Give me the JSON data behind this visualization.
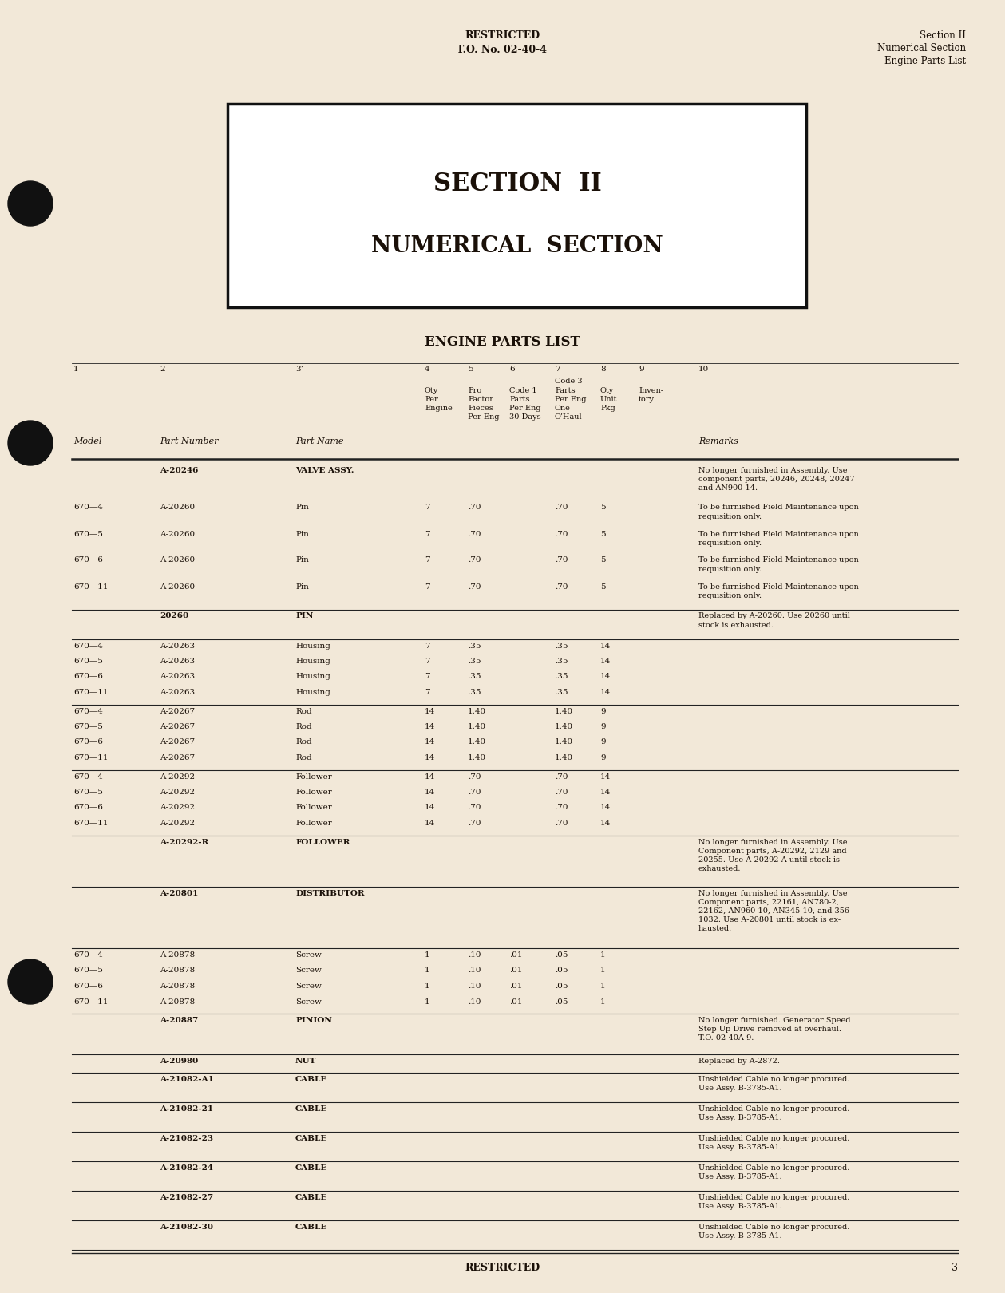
{
  "bg_color": "#f2e8d8",
  "header_center_line1": "RESTRICTED",
  "header_center_line2": "T.O. No. 02-40-4",
  "header_right_line1": "Section II",
  "header_right_line2": "Numerical Section",
  "header_right_line3": "Engine Parts List",
  "section_title_line1": "SECTION  II",
  "section_title_line2": "NUMERICAL  SECTION",
  "table_title": "ENGINE PARTS LIST",
  "footer_center": "RESTRICTED",
  "footer_page": "3",
  "rows": [
    {
      "model": "",
      "part": "A-20246",
      "name": "VALVE ASSY.",
      "c4": "",
      "c5": "",
      "c6": "",
      "c7": "",
      "c8": "",
      "c9": "",
      "remarks": "No longer furnished in Assembly. Use\ncomponent parts, 20246, 20248, 20247\nand AN900-14.",
      "bold": true,
      "sep_before": false,
      "sep_after": false
    },
    {
      "model": "670—4",
      "part": "A-20260",
      "name": "Pin",
      "c4": "7",
      "c5": ".70",
      "c6": "",
      "c7": ".70",
      "c8": "5",
      "c9": "",
      "remarks": "To be furnished Field Maintenance upon\nrequisition only.",
      "bold": false,
      "sep_before": true,
      "sep_after": false
    },
    {
      "model": "670—5",
      "part": "A-20260",
      "name": "Pin",
      "c4": "7",
      "c5": ".70",
      "c6": "",
      "c7": ".70",
      "c8": "5",
      "c9": "",
      "remarks": "To be furnished Field Maintenance upon\nrequisition only.",
      "bold": false,
      "sep_before": false,
      "sep_after": false
    },
    {
      "model": "670—6",
      "part": "A-20260",
      "name": "Pin",
      "c4": "7",
      "c5": ".70",
      "c6": "",
      "c7": ".70",
      "c8": "5",
      "c9": "",
      "remarks": "To be furnished Field Maintenance upon\nrequisition only.",
      "bold": false,
      "sep_before": false,
      "sep_after": false
    },
    {
      "model": "670—11",
      "part": "A-20260",
      "name": "Pin",
      "c4": "7",
      "c5": ".70",
      "c6": "",
      "c7": ".70",
      "c8": "5",
      "c9": "",
      "remarks": "To be furnished Field Maintenance upon\nrequisition only.",
      "bold": false,
      "sep_before": false,
      "sep_after": true
    },
    {
      "model": "",
      "part": "20260",
      "name": "PIN",
      "c4": "",
      "c5": "",
      "c6": "",
      "c7": "",
      "c8": "",
      "c9": "",
      "remarks": "Replaced by A-20260. Use 20260 until\nstock is exhausted.",
      "bold": true,
      "sep_before": false,
      "sep_after": true
    },
    {
      "model": "670—4",
      "part": "A-20263",
      "name": "Housing",
      "c4": "7",
      "c5": ".35",
      "c6": "",
      "c7": ".35",
      "c8": "14",
      "c9": "",
      "remarks": "",
      "bold": false,
      "sep_before": false,
      "sep_after": false
    },
    {
      "model": "670—5",
      "part": "A-20263",
      "name": "Housing",
      "c4": "7",
      "c5": ".35",
      "c6": "",
      "c7": ".35",
      "c8": "14",
      "c9": "",
      "remarks": "",
      "bold": false,
      "sep_before": false,
      "sep_after": false
    },
    {
      "model": "670—6",
      "part": "A-20263",
      "name": "Housing",
      "c4": "7",
      "c5": ".35",
      "c6": "",
      "c7": ".35",
      "c8": "14",
      "c9": "",
      "remarks": "",
      "bold": false,
      "sep_before": false,
      "sep_after": false
    },
    {
      "model": "670—11",
      "part": "A-20263",
      "name": "Housing",
      "c4": "7",
      "c5": ".35",
      "c6": "",
      "c7": ".35",
      "c8": "14",
      "c9": "",
      "remarks": "",
      "bold": false,
      "sep_before": false,
      "sep_after": true
    },
    {
      "model": "670—4",
      "part": "A-20267",
      "name": "Rod",
      "c4": "14",
      "c5": "1.40",
      "c6": "",
      "c7": "1.40",
      "c8": "9",
      "c9": "",
      "remarks": "",
      "bold": false,
      "sep_before": false,
      "sep_after": false
    },
    {
      "model": "670—5",
      "part": "A-20267",
      "name": "Rod",
      "c4": "14",
      "c5": "1.40",
      "c6": "",
      "c7": "1.40",
      "c8": "9",
      "c9": "",
      "remarks": "",
      "bold": false,
      "sep_before": false,
      "sep_after": false
    },
    {
      "model": "670—6",
      "part": "A-20267",
      "name": "Rod",
      "c4": "14",
      "c5": "1.40",
      "c6": "",
      "c7": "1.40",
      "c8": "9",
      "c9": "",
      "remarks": "",
      "bold": false,
      "sep_before": false,
      "sep_after": false
    },
    {
      "model": "670—11",
      "part": "A-20267",
      "name": "Rod",
      "c4": "14",
      "c5": "1.40",
      "c6": "",
      "c7": "1.40",
      "c8": "9",
      "c9": "",
      "remarks": "",
      "bold": false,
      "sep_before": false,
      "sep_after": true
    },
    {
      "model": "670—4",
      "part": "A-20292",
      "name": "Follower",
      "c4": "14",
      "c5": ".70",
      "c6": "",
      "c7": ".70",
      "c8": "14",
      "c9": "",
      "remarks": "",
      "bold": false,
      "sep_before": false,
      "sep_after": false
    },
    {
      "model": "670—5",
      "part": "A-20292",
      "name": "Follower",
      "c4": "14",
      "c5": ".70",
      "c6": "",
      "c7": ".70",
      "c8": "14",
      "c9": "",
      "remarks": "",
      "bold": false,
      "sep_before": false,
      "sep_after": false
    },
    {
      "model": "670—6",
      "part": "A-20292",
      "name": "Follower",
      "c4": "14",
      "c5": ".70",
      "c6": "",
      "c7": ".70",
      "c8": "14",
      "c9": "",
      "remarks": "",
      "bold": false,
      "sep_before": false,
      "sep_after": false
    },
    {
      "model": "670—11",
      "part": "A-20292",
      "name": "Follower",
      "c4": "14",
      "c5": ".70",
      "c6": "",
      "c7": ".70",
      "c8": "14",
      "c9": "",
      "remarks": "",
      "bold": false,
      "sep_before": false,
      "sep_after": true
    },
    {
      "model": "",
      "part": "A-20292-R",
      "name": "FOLLOWER",
      "c4": "",
      "c5": "",
      "c6": "",
      "c7": "",
      "c8": "",
      "c9": "",
      "remarks": "No longer furnished in Assembly. Use\nComponent parts, A-20292, 2129 and\n20255. Use A-20292-A until stock is\nexhausted.",
      "bold": true,
      "sep_before": false,
      "sep_after": true
    },
    {
      "model": "",
      "part": "A-20801",
      "name": "DISTRIBUTOR",
      "c4": "",
      "c5": "",
      "c6": "",
      "c7": "",
      "c8": "",
      "c9": "",
      "remarks": "No longer furnished in Assembly. Use\nComponent parts, 22161, AN780-2,\n22162, AN960-10, AN345-10, and 356-\n1032. Use A-20801 until stock is ex-\nhausted.",
      "bold": true,
      "sep_before": false,
      "sep_after": true
    },
    {
      "model": "670—4",
      "part": "A-20878",
      "name": "Screw",
      "c4": "1",
      "c5": ".10",
      "c6": ".01",
      "c7": ".05",
      "c8": "1",
      "c9": "",
      "remarks": "",
      "bold": false,
      "sep_before": false,
      "sep_after": false
    },
    {
      "model": "670—5",
      "part": "A-20878",
      "name": "Screw",
      "c4": "1",
      "c5": ".10",
      "c6": ".01",
      "c7": ".05",
      "c8": "1",
      "c9": "",
      "remarks": "",
      "bold": false,
      "sep_before": false,
      "sep_after": false
    },
    {
      "model": "670—6",
      "part": "A-20878",
      "name": "Screw",
      "c4": "1",
      "c5": ".10",
      "c6": ".01",
      "c7": ".05",
      "c8": "1",
      "c9": "",
      "remarks": "",
      "bold": false,
      "sep_before": false,
      "sep_after": false
    },
    {
      "model": "670—11",
      "part": "A-20878",
      "name": "Screw",
      "c4": "1",
      "c5": ".10",
      "c6": ".01",
      "c7": ".05",
      "c8": "1",
      "c9": "",
      "remarks": "",
      "bold": false,
      "sep_before": false,
      "sep_after": true
    },
    {
      "model": "",
      "part": "A-20887",
      "name": "PINION",
      "c4": "",
      "c5": "",
      "c6": "",
      "c7": "",
      "c8": "",
      "c9": "",
      "remarks": "No longer furnished. Generator Speed\nStep Up Drive removed at overhaul.\nT.O. 02-40A-9.",
      "bold": true,
      "sep_before": false,
      "sep_after": true
    },
    {
      "model": "",
      "part": "A-20980",
      "name": "NUT",
      "c4": "",
      "c5": "",
      "c6": "",
      "c7": "",
      "c8": "",
      "c9": "",
      "remarks": "Replaced by A-2872.",
      "bold": true,
      "sep_before": false,
      "sep_after": true
    },
    {
      "model": "",
      "part": "A-21082-A1",
      "name": "CABLE",
      "c4": "",
      "c5": "",
      "c6": "",
      "c7": "",
      "c8": "",
      "c9": "",
      "remarks": "Unshielded Cable no longer procured.\nUse Assy. B-3785-A1.",
      "bold": true,
      "sep_before": false,
      "sep_after": true
    },
    {
      "model": "",
      "part": "A-21082-21",
      "name": "CABLE",
      "c4": "",
      "c5": "",
      "c6": "",
      "c7": "",
      "c8": "",
      "c9": "",
      "remarks": "Unshielded Cable no longer procured.\nUse Assy. B-3785-A1.",
      "bold": true,
      "sep_before": false,
      "sep_after": true
    },
    {
      "model": "",
      "part": "A-21082-23",
      "name": "CABLE",
      "c4": "",
      "c5": "",
      "c6": "",
      "c7": "",
      "c8": "",
      "c9": "",
      "remarks": "Unshielded Cable no longer procured.\nUse Assy. B-3785-A1.",
      "bold": true,
      "sep_before": false,
      "sep_after": true
    },
    {
      "model": "",
      "part": "A-21082-24",
      "name": "CABLE",
      "c4": "",
      "c5": "",
      "c6": "",
      "c7": "",
      "c8": "",
      "c9": "",
      "remarks": "Unshielded Cable no longer procured.\nUse Assy. B-3785-A1.",
      "bold": true,
      "sep_before": false,
      "sep_after": true
    },
    {
      "model": "",
      "part": "A-21082-27",
      "name": "CABLE",
      "c4": "",
      "c5": "",
      "c6": "",
      "c7": "",
      "c8": "",
      "c9": "",
      "remarks": "Unshielded Cable no longer procured.\nUse Assy. B-3785-A1.",
      "bold": true,
      "sep_before": false,
      "sep_after": true
    },
    {
      "model": "",
      "part": "A-21082-30",
      "name": "CABLE",
      "c4": "",
      "c5": "",
      "c6": "",
      "c7": "",
      "c8": "",
      "c9": "",
      "remarks": "Unshielded Cable no longer procured.\nUse Assy. B-3785-A1.",
      "bold": true,
      "sep_before": false,
      "sep_after": true
    }
  ]
}
